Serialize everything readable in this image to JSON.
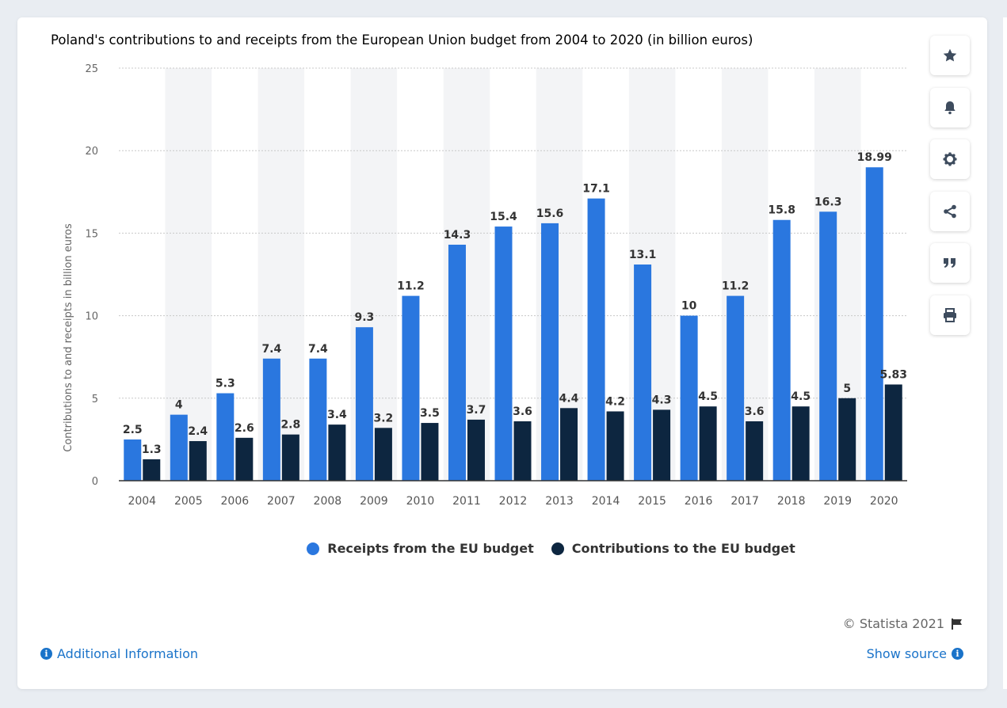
{
  "chart_data": {
    "type": "bar",
    "title": "Poland's contributions to and receipts from the European Union budget from 2004 to 2020 (in billion euros)",
    "xlabel": "",
    "ylabel": "Contributions to and receipts in billion euros",
    "ylim": [
      0,
      25
    ],
    "yticks": [
      0,
      5,
      10,
      15,
      20,
      25
    ],
    "grid": true,
    "legend_position": "bottom",
    "categories": [
      "2004",
      "2005",
      "2006",
      "2007",
      "2008",
      "2009",
      "2010",
      "2011",
      "2012",
      "2013",
      "2014",
      "2015",
      "2016",
      "2017",
      "2018",
      "2019",
      "2020"
    ],
    "series": [
      {
        "name": "Receipts from the EU budget",
        "color": "#2a77df",
        "values": [
          2.5,
          4,
          5.3,
          7.4,
          7.4,
          9.3,
          11.2,
          14.3,
          15.4,
          15.6,
          17.1,
          13.1,
          10,
          11.2,
          15.8,
          16.3,
          18.99
        ]
      },
      {
        "name": "Contributions to the EU budget",
        "color": "#0d2640",
        "values": [
          1.3,
          2.4,
          2.6,
          2.8,
          3.4,
          3.2,
          3.5,
          3.7,
          3.6,
          4.4,
          4.2,
          4.3,
          4.5,
          3.6,
          4.5,
          5,
          5.83
        ]
      }
    ]
  },
  "sidebar": {
    "buttons": [
      {
        "name": "star-button",
        "icon": "star-icon"
      },
      {
        "name": "bell-button",
        "icon": "bell-icon"
      },
      {
        "name": "settings-button",
        "icon": "gear-icon"
      },
      {
        "name": "share-button",
        "icon": "share-icon"
      },
      {
        "name": "cite-button",
        "icon": "quote-icon"
      },
      {
        "name": "print-button",
        "icon": "print-icon"
      }
    ],
    "icon_color": "#3e4c5e"
  },
  "footer": {
    "copyright": "© Statista 2021",
    "additional_info": "Additional Information",
    "show_source": "Show source"
  },
  "colors": {
    "link": "#1a73c9",
    "grid_band": "#f3f4f6"
  }
}
